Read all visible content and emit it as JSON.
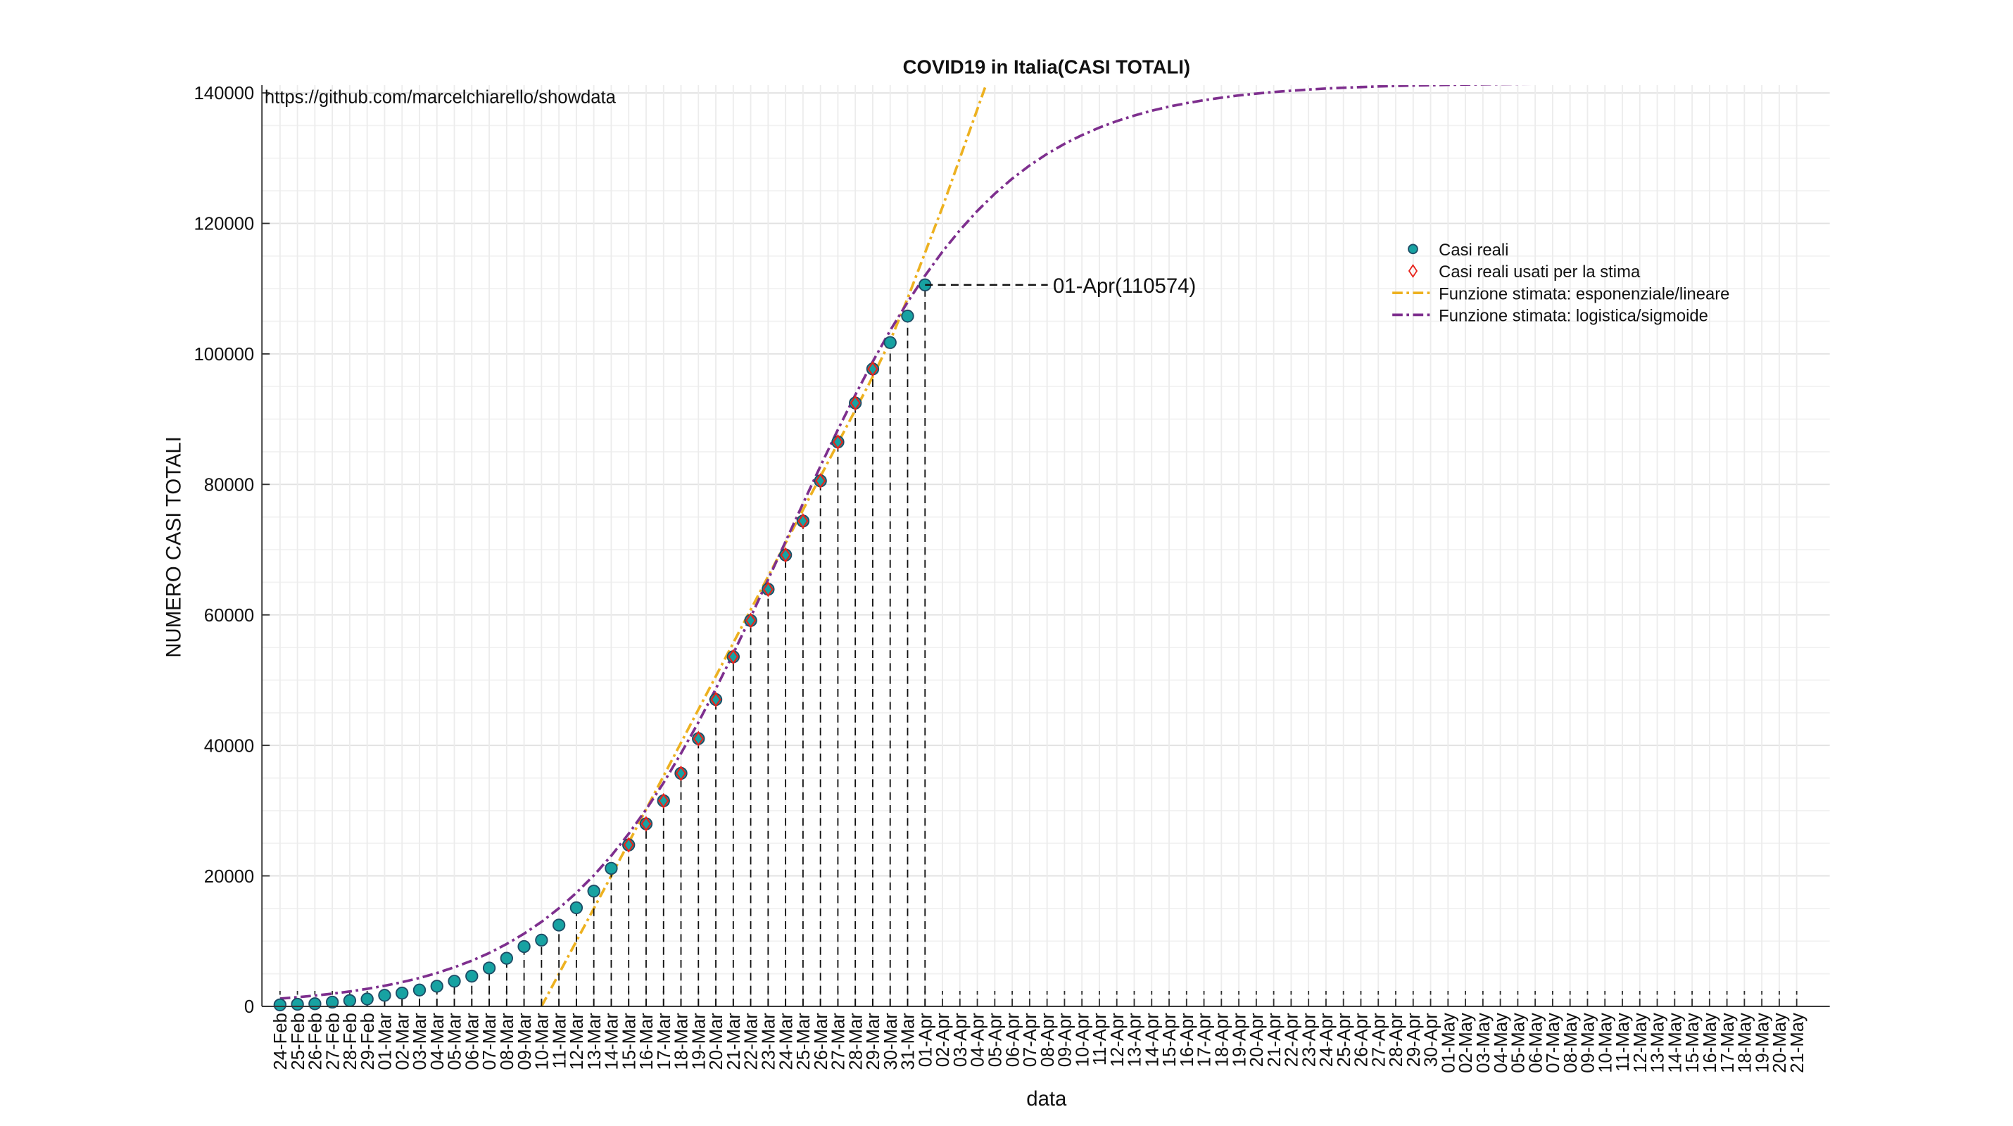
{
  "chart_data": {
    "type": "line",
    "title": "COVID19 in Italia(CASI TOTALI)",
    "source": "https://github.com/marcelchiarello/showdata",
    "x_label": "data",
    "y_label": "NUMERO CASI TOTALI",
    "annotation": "01-Apr(110574)",
    "categories": [
      "24-Feb",
      "25-Feb",
      "26-Feb",
      "27-Feb",
      "28-Feb",
      "29-Feb",
      "01-Mar",
      "02-Mar",
      "03-Mar",
      "04-Mar",
      "05-Mar",
      "06-Mar",
      "07-Mar",
      "08-Mar",
      "09-Mar",
      "10-Mar",
      "11-Mar",
      "12-Mar",
      "13-Mar",
      "14-Mar",
      "15-Mar",
      "16-Mar",
      "17-Mar",
      "18-Mar",
      "19-Mar",
      "20-Mar",
      "21-Mar",
      "22-Mar",
      "23-Mar",
      "24-Mar",
      "25-Mar",
      "26-Mar",
      "27-Mar",
      "28-Mar",
      "29-Mar",
      "30-Mar",
      "31-Mar",
      "01-Apr",
      "02-Apr",
      "03-Apr",
      "04-Apr",
      "05-Apr",
      "06-Apr",
      "07-Apr",
      "08-Apr",
      "09-Apr",
      "10-Apr",
      "11-Apr",
      "12-Apr",
      "13-Apr",
      "14-Apr",
      "15-Apr",
      "16-Apr",
      "17-Apr",
      "18-Apr",
      "19-Apr",
      "20-Apr",
      "21-Apr",
      "22-Apr",
      "23-Apr",
      "24-Apr",
      "25-Apr",
      "26-Apr",
      "27-Apr",
      "28-Apr",
      "29-Apr",
      "30-Apr",
      "01-May",
      "02-May",
      "03-May",
      "04-May",
      "05-May",
      "06-May",
      "07-May",
      "08-May",
      "09-May",
      "10-May",
      "11-May",
      "12-May",
      "13-May",
      "14-May",
      "15-May",
      "16-May",
      "17-May",
      "18-May",
      "19-May",
      "20-May",
      "21-May"
    ],
    "series": [
      {
        "name": "Casi reali",
        "kind": "points",
        "color": "#17a2a2",
        "values": [
          229,
          322,
          400,
          650,
          888,
          1128,
          1694,
          2036,
          2502,
          3089,
          3858,
          4636,
          5883,
          7375,
          9172,
          10149,
          12462,
          15113,
          17660,
          21157,
          24747,
          27980,
          31506,
          35713,
          41035,
          47021,
          53578,
          59138,
          63927,
          69176,
          74386,
          80539,
          86498,
          92472,
          97689,
          101739,
          105792,
          110574,
          null,
          null,
          null,
          null,
          null,
          null,
          null,
          null,
          null,
          null,
          null,
          null,
          null,
          null,
          null,
          null,
          null,
          null,
          null,
          null,
          null,
          null,
          null,
          null,
          null,
          null,
          null,
          null,
          null,
          null,
          null,
          null,
          null,
          null,
          null,
          null,
          null,
          null,
          null,
          null,
          null,
          null,
          null,
          null,
          null,
          null,
          null,
          null,
          null,
          null
        ]
      },
      {
        "name": "Casi reali usati per la stima",
        "kind": "diamonds",
        "color": "#e8231b",
        "values": [
          null,
          null,
          null,
          null,
          null,
          null,
          null,
          null,
          null,
          null,
          null,
          null,
          null,
          null,
          null,
          null,
          null,
          null,
          null,
          null,
          24747,
          27980,
          31506,
          35713,
          41035,
          47021,
          53578,
          59138,
          63927,
          69176,
          74386,
          80539,
          86498,
          92472,
          97689,
          null,
          null,
          null,
          null,
          null,
          null,
          null,
          null,
          null,
          null,
          null,
          null,
          null,
          null,
          null,
          null,
          null,
          null,
          null,
          null,
          null,
          null,
          null,
          null,
          null,
          null,
          null,
          null,
          null,
          null,
          null,
          null,
          null,
          null,
          null,
          null,
          null,
          null,
          null,
          null,
          null,
          null,
          null,
          null,
          null,
          null,
          null,
          null,
          null,
          null,
          null,
          null,
          null
        ]
      },
      {
        "name": "Funzione stimata: esponenziale/lineare",
        "kind": "dashdot",
        "color": "#edb120",
        "values": [
          null,
          null,
          null,
          null,
          null,
          null,
          null,
          null,
          null,
          null,
          null,
          null,
          null,
          null,
          null,
          0,
          5000,
          10000,
          15000,
          20000,
          25100,
          30200,
          35300,
          40400,
          45500,
          50600,
          55700,
          60800,
          65900,
          71000,
          76100,
          81200,
          86300,
          91400,
          96500,
          102000,
          108500,
          115500,
          122500,
          130000,
          137500,
          145000,
          null,
          null,
          null,
          null,
          null,
          null,
          null,
          null,
          null,
          null,
          null,
          null,
          null,
          null,
          null,
          null,
          null,
          null,
          null,
          null,
          null,
          null,
          null,
          null,
          null,
          null,
          null,
          null,
          null,
          null,
          null,
          null,
          null,
          null,
          null,
          null,
          null,
          null,
          null,
          null,
          null,
          null,
          null,
          null,
          null,
          null
        ]
      },
      {
        "name": "Funzione stimata: logistica/sigmoide",
        "kind": "dashdot",
        "color": "#7e2f8e",
        "values": [
          1192,
          1404,
          1653,
          1945,
          2286,
          2686,
          3160,
          3713,
          4352,
          5108,
          5996,
          7005,
          8179,
          9562,
          11142,
          12958,
          15037,
          17405,
          20071,
          23083,
          26449,
          30171,
          34262,
          38767,
          43538,
          48676,
          54070,
          59679,
          65418,
          71249,
          77070,
          82797,
          88382,
          93709,
          98813,
          103587,
          107932,
          112000,
          115671,
          118968,
          121921,
          124548,
          126860,
          128884,
          130656,
          132194,
          133528,
          134685,
          135680,
          136530,
          137272,
          137901,
          138427,
          138889,
          139272,
          139615,
          139891,
          140141,
          140335,
          140516,
          140670,
          140796,
          140894,
          140992,
          141063,
          141133,
          141189,
          141232,
          141274,
          141316,
          141344,
          141364,
          141384,
          141402,
          141417,
          141429,
          141440,
          141450,
          141460,
          141465,
          141470,
          141475,
          141480,
          141483,
          141486,
          141488,
          141490,
          141492
        ]
      }
    ],
    "ylim": [
      0,
      140000
    ],
    "yticks": [
      0,
      20000,
      40000,
      60000,
      80000,
      100000,
      120000,
      140000
    ],
    "grid": true
  }
}
